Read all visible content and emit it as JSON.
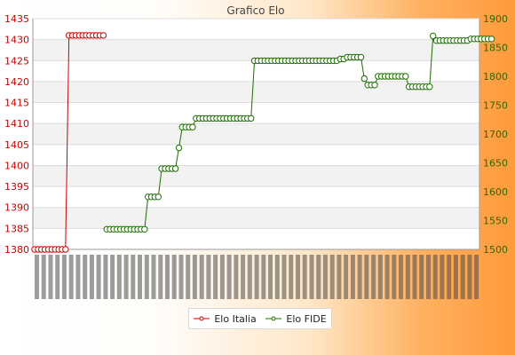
{
  "chart_data": {
    "type": "line",
    "title": "Grafico Elo",
    "xlabel": "",
    "ylabel": "",
    "legend_placement": "bottom-center",
    "grid": true,
    "y_left": {
      "min": 1380,
      "max": 1435,
      "step": 5
    },
    "y_right": {
      "min": 1500,
      "max": 1900,
      "step": 50
    },
    "colors": {
      "italia": "#cc0000",
      "fide": "#1d6e00"
    },
    "series": [
      {
        "name": "Elo Italia",
        "axis": "left",
        "segments": [
          {
            "y": 1380,
            "n": 10
          },
          {
            "y": 1431,
            "n": 11
          }
        ]
      },
      {
        "name": "Elo FIDE",
        "axis": "right",
        "segments": [
          {
            "y": 1535,
            "n": 12
          },
          {
            "y": 1591,
            "n": 4
          },
          {
            "y": 1640,
            "n": 5
          },
          {
            "y": 1676,
            "n": 1
          },
          {
            "y": 1712,
            "n": 4
          },
          {
            "y": 1727,
            "n": 17
          },
          {
            "y": 1827,
            "n": 25
          },
          {
            "y": 1830,
            "n": 2
          },
          {
            "y": 1833,
            "n": 5
          },
          {
            "y": 1796,
            "n": 1
          },
          {
            "y": 1785,
            "n": 3
          },
          {
            "y": 1800,
            "n": 9
          },
          {
            "y": 1782,
            "n": 7
          },
          {
            "y": 1870,
            "n": 1
          },
          {
            "y": 1862,
            "n": 10
          },
          {
            "y": 1865,
            "n": 7
          }
        ]
      }
    ]
  }
}
